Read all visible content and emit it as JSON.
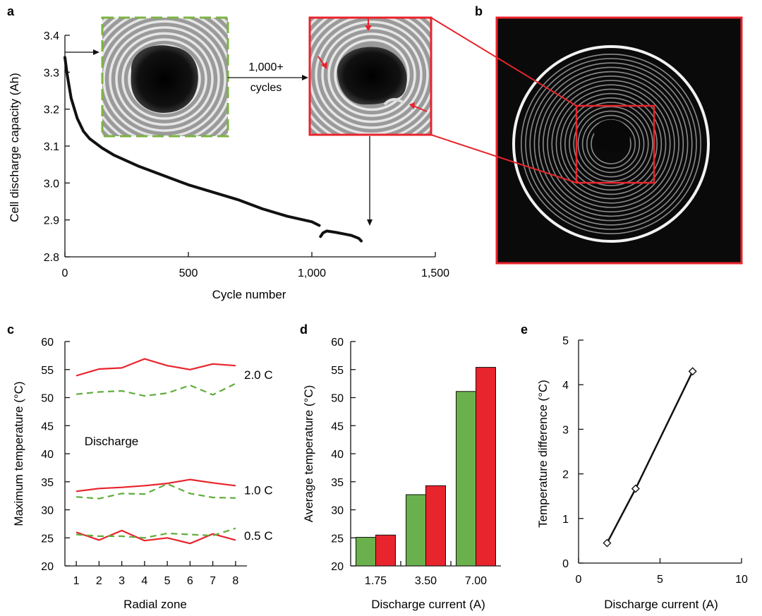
{
  "panels": {
    "a": {
      "label": "a",
      "inset_annotation": [
        "1,000+",
        "cycles"
      ],
      "chart_data": {
        "type": "line",
        "xlabel": "Cycle number",
        "ylabel": "Cell discharge capacity (Ah)",
        "xlim": [
          0,
          1500
        ],
        "ylim": [
          2.8,
          3.4
        ],
        "xticks": [
          0,
          500,
          1000,
          1500
        ],
        "xtick_labels": [
          "0",
          "500",
          "1,000",
          "1,500"
        ],
        "yticks": [
          2.8,
          2.9,
          3.0,
          3.1,
          3.2,
          3.3,
          3.4
        ],
        "ytick_labels": [
          "2.8",
          "2.9",
          "3.0",
          "3.1",
          "3.2",
          "3.3",
          "3.4"
        ],
        "segments": [
          {
            "x": [
              0,
              10,
              25,
              50,
              75,
              100,
              150,
              200,
              250,
              300,
              400,
              500,
              600,
              700,
              800,
              900,
              1000,
              1030
            ],
            "y": [
              3.34,
              3.29,
              3.23,
              3.175,
              3.14,
              3.12,
              3.095,
              3.075,
              3.06,
              3.045,
              3.02,
              2.995,
              2.975,
              2.955,
              2.93,
              2.91,
              2.895,
              2.885
            ]
          },
          {
            "x": [
              1035,
              1045,
              1060,
              1080,
              1100,
              1130,
              1160,
              1190,
              1200
            ],
            "y": [
              2.855,
              2.865,
              2.87,
              2.868,
              2.866,
              2.862,
              2.858,
              2.85,
              2.843
            ]
          }
        ]
      }
    },
    "b": {
      "label": "b"
    },
    "c": {
      "label": "c",
      "annotation": "Discharge",
      "chart_data": {
        "type": "line",
        "xlabel": "Radial zone",
        "ylabel": "Maximum temperature (°C)",
        "xlim": [
          0.5,
          8.5
        ],
        "ylim": [
          20,
          60
        ],
        "xticks": [
          1,
          2,
          3,
          4,
          5,
          6,
          7,
          8
        ],
        "yticks": [
          20,
          25,
          30,
          35,
          40,
          45,
          50,
          55,
          60
        ],
        "x": [
          1,
          2,
          3,
          4,
          5,
          6,
          7,
          8
        ],
        "series": [
          {
            "group": "2.0 C",
            "style": "solid",
            "color": "#e8242c",
            "values": [
              53.9,
              55.1,
              55.3,
              56.9,
              55.7,
              55.0,
              56.0,
              55.7
            ]
          },
          {
            "group": "2.0 C",
            "style": "dashed",
            "color": "#5fad3b",
            "values": [
              50.6,
              51.0,
              51.2,
              50.3,
              50.8,
              52.2,
              50.5,
              52.5
            ]
          },
          {
            "group": "1.0 C",
            "style": "solid",
            "color": "#e8242c",
            "values": [
              33.3,
              33.8,
              34.0,
              34.3,
              34.7,
              35.4,
              34.8,
              34.3
            ]
          },
          {
            "group": "1.0 C",
            "style": "dashed",
            "color": "#5fad3b",
            "values": [
              32.3,
              32.0,
              32.9,
              32.8,
              34.6,
              32.9,
              32.2,
              32.1
            ]
          },
          {
            "group": "0.5 C",
            "style": "solid",
            "color": "#e8242c",
            "values": [
              26.0,
              24.6,
              26.3,
              24.5,
              25.0,
              24.0,
              25.7,
              24.6
            ]
          },
          {
            "group": "0.5 C",
            "style": "dashed",
            "color": "#5fad3b",
            "values": [
              25.6,
              25.3,
              25.3,
              25.0,
              25.8,
              25.6,
              25.4,
              26.7
            ]
          }
        ],
        "series_labels": [
          {
            "text": "2.0 C",
            "y": 54.1
          },
          {
            "text": "1.0 C",
            "y": 33.5
          },
          {
            "text": "0.5 C",
            "y": 25.4
          }
        ]
      }
    },
    "d": {
      "label": "d",
      "chart_data": {
        "type": "bar",
        "xlabel": "Discharge current (A)",
        "ylabel": "Average temperature (°C)",
        "ylim": [
          20,
          60
        ],
        "yticks": [
          20,
          25,
          30,
          35,
          40,
          45,
          50,
          55,
          60
        ],
        "categories": [
          "1.75",
          "3.50",
          "7.00"
        ],
        "series": [
          {
            "color": "#6ab04c",
            "values": [
              25.1,
              32.7,
              51.1
            ]
          },
          {
            "color": "#e8242c",
            "values": [
              25.5,
              34.3,
              55.4
            ]
          }
        ]
      }
    },
    "e": {
      "label": "e",
      "chart_data": {
        "type": "line",
        "xlabel": "Discharge current (A)",
        "ylabel": "Temperature difference (°C)",
        "xlim": [
          0,
          10
        ],
        "ylim": [
          0,
          5
        ],
        "xticks": [
          0,
          5,
          10
        ],
        "yticks": [
          0,
          1,
          2,
          3,
          4,
          5
        ],
        "marker": "diamond",
        "x": [
          1.75,
          3.5,
          7.0
        ],
        "y": [
          0.45,
          1.67,
          4.3
        ]
      }
    }
  }
}
